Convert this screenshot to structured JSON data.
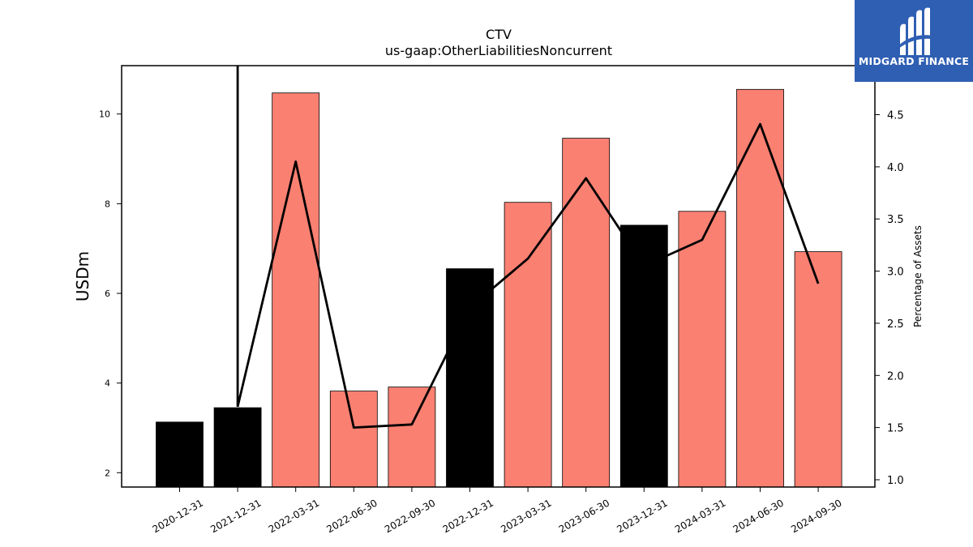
{
  "brand": {
    "name": "MIDGARD FINANCE",
    "color": "#2f5fb3",
    "icon": "midgard-logo-icon"
  },
  "chart_data": {
    "type": "bar",
    "title": "CTV",
    "subtitle": "us-gaap:OtherLiabilitiesNoncurrent",
    "ylabel": "USDm",
    "y2label": "Percentage of Assets",
    "categories": [
      "2020-12-31",
      "2021-12-31",
      "2022-03-31",
      "2022-06-30",
      "2022-09-30",
      "2022-12-31",
      "2023-03-31",
      "2023-06-30",
      "2023-12-31",
      "2024-03-31",
      "2024-06-30",
      "2024-09-30"
    ],
    "series": [
      {
        "values": [
          3.13,
          3.45,
          10.47,
          3.82,
          3.91,
          6.55,
          8.03,
          9.46,
          7.52,
          7.83,
          10.55,
          6.93
        ],
        "bar_colors": [
          "#000000",
          "#000000",
          "#fa8072",
          "#fa8072",
          "#fa8072",
          "#000000",
          "#fa8072",
          "#fa8072",
          "#000000",
          "#fa8072",
          "#fa8072",
          "#fa8072"
        ]
      },
      {
        "type": "line",
        "axis": "right",
        "color": "#000000",
        "values": [
          null,
          1.7,
          4.05,
          1.5,
          1.53,
          2.65,
          3.12,
          3.89,
          3.05,
          3.3,
          4.41,
          2.88
        ]
      }
    ],
    "vline": {
      "category": "2021-12-31"
    },
    "ylim": [
      1.68,
      11.08
    ],
    "y2lim": [
      0.93,
      4.97
    ],
    "yticks": [
      2,
      4,
      6,
      8,
      10
    ],
    "y2ticks": [
      "1.0",
      "1.5",
      "2.0",
      "2.5",
      "3.0",
      "3.5",
      "4.0",
      "4.5"
    ],
    "grid": false,
    "legend": "none"
  }
}
